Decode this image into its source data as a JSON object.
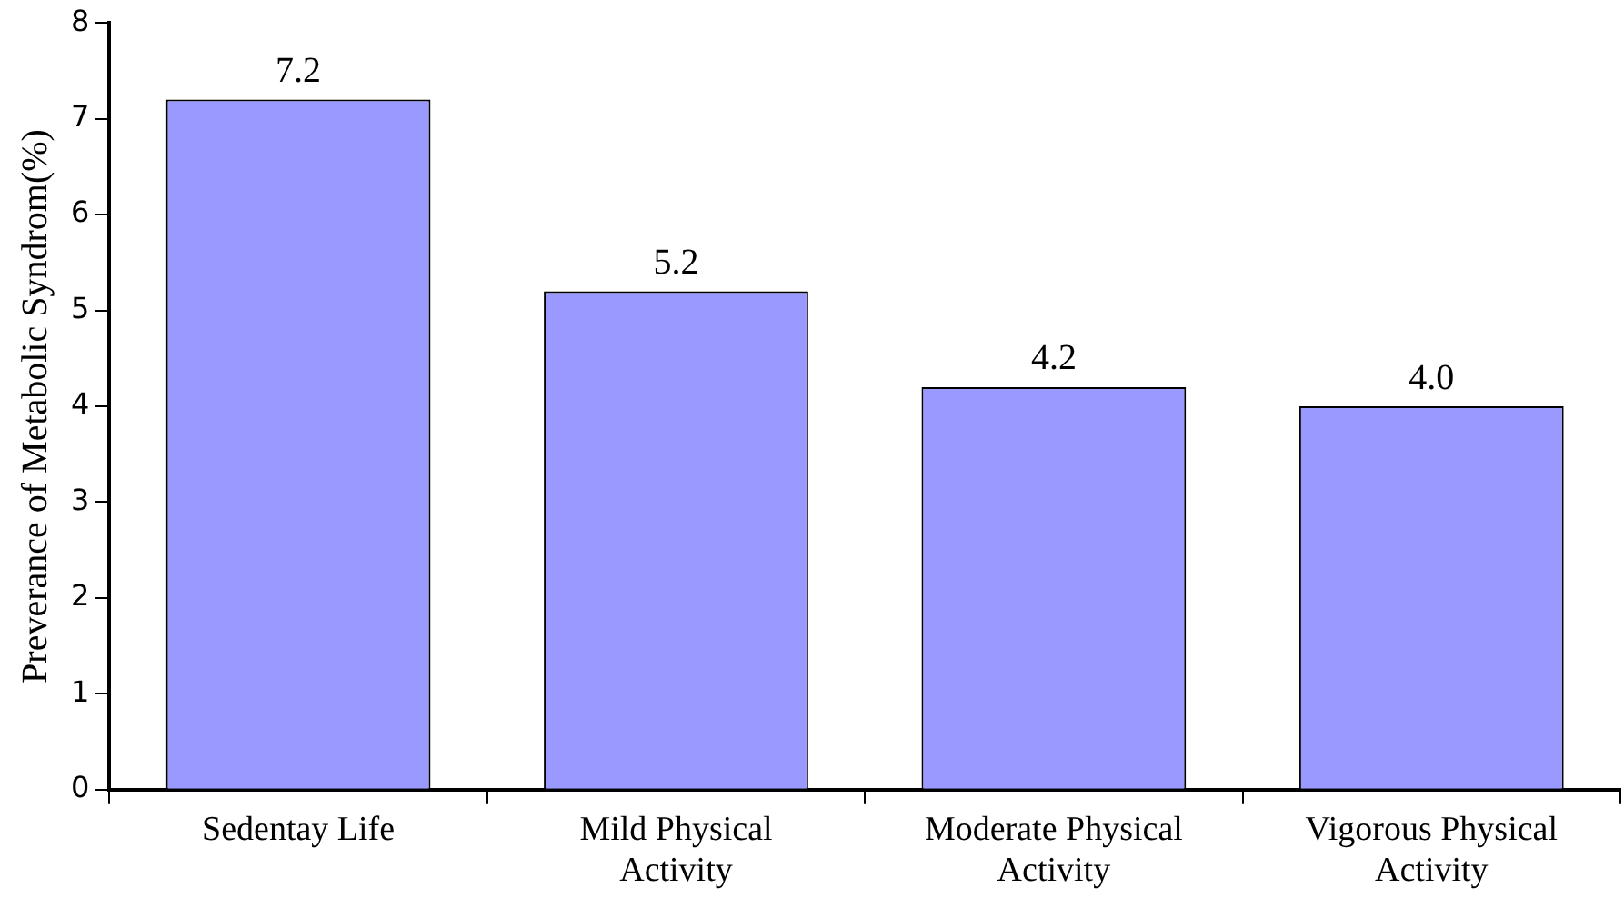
{
  "chart_data": {
    "type": "bar",
    "ylabel": "Preverance of Metabolic Syndrom(%)",
    "categories": [
      "Sedentay Life",
      "Mild Physical Activity",
      "Moderate Physical Activity",
      "Vigorous Physical Activity"
    ],
    "values": [
      7.2,
      5.2,
      4.2,
      4.0
    ],
    "value_labels": [
      "7.2",
      "5.2",
      "4.2",
      "4.0"
    ],
    "color": "#9999ff",
    "ylim": [
      0,
      8
    ],
    "yticks": [
      0,
      1,
      2,
      3,
      4,
      5,
      6,
      7,
      8
    ],
    "grid": false,
    "legend": false
  }
}
